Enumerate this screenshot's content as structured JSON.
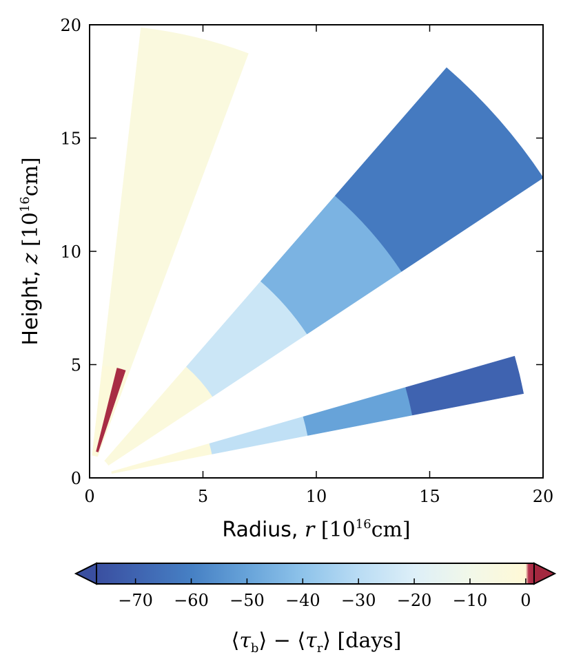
{
  "chart_data": {
    "type": "heatmap",
    "subtype": "polar-wedge map",
    "xlabel": {
      "prefix": "Radius, ",
      "var": "r",
      "unit_open": " [10",
      "unit_exp": "16",
      "unit_close": "cm]"
    },
    "ylabel": {
      "prefix": "Height, ",
      "var": "z",
      "unit_open": " [10",
      "unit_exp": "16",
      "unit_close": "cm]"
    },
    "xlim": [
      0,
      20
    ],
    "ylim": [
      0,
      20
    ],
    "xticks": [
      "0",
      "5",
      "10",
      "15",
      "20"
    ],
    "yticks": [
      "0",
      "5",
      "10",
      "15",
      "20"
    ],
    "grid": false,
    "colorbar": {
      "orientation": "horizontal",
      "position": "bottom",
      "range": [
        -77,
        1.5
      ],
      "extend": "both",
      "ticks": [
        "−70",
        "−60",
        "−50",
        "−40",
        "−30",
        "−20",
        "−10",
        "0"
      ],
      "tick_values": [
        -70,
        -60,
        -50,
        -40,
        -30,
        -20,
        -10,
        0
      ],
      "label": {
        "open": "⟨",
        "tau_b_sub": "b",
        "mid": "⟩ − ⟨",
        "tau_r_sub": "r",
        "close": "⟩",
        "unit": " [days]"
      },
      "colormap_stops": [
        [
          -77,
          "#3a4fa0"
        ],
        [
          -70,
          "#3f63b0"
        ],
        [
          -60,
          "#4680c4"
        ],
        [
          -50,
          "#67a3d9"
        ],
        [
          -40,
          "#8ec3ea"
        ],
        [
          -30,
          "#b9dcf4"
        ],
        [
          -20,
          "#ddeff8"
        ],
        [
          -10,
          "#f2f8e9"
        ],
        [
          0,
          "#fff9d6"
        ],
        [
          0.5,
          "#b5344f"
        ],
        [
          1.5,
          "#a3283f"
        ]
      ]
    },
    "wedges": [
      {
        "angle_deg": [
          11,
          16
        ],
        "radius": [
          1,
          19.5
        ],
        "cells": [
          {
            "r": [
              1,
              5.5
            ],
            "value": -2
          },
          {
            "r": [
              5.5,
              9.8
            ],
            "value": -28
          },
          {
            "r": [
              9.8,
              14.5
            ],
            "value": -50
          },
          {
            "r": [
              14.5,
              19.5
            ],
            "value": -70
          }
        ]
      },
      {
        "angle_deg": [
          33.5,
          49
        ],
        "radius": [
          1,
          24
        ],
        "cells": [
          {
            "r": [
              1,
              6.5
            ],
            "value": -3
          },
          {
            "r": [
              6.5,
              11.5
            ],
            "value": -25
          },
          {
            "r": [
              11.5,
              16.5
            ],
            "value": -45
          },
          {
            "r": [
              16.5,
              24
            ],
            "value": -62
          }
        ]
      },
      {
        "angle_deg": [
          69.5,
          83.5
        ],
        "radius": [
          1,
          20
        ],
        "cells": [
          {
            "r": [
              1,
              5
            ],
            "value": -2
          },
          {
            "r": [
              5,
              20
            ],
            "value": -4
          }
        ]
      },
      {
        "angle_deg": [
          71.5,
          76
        ],
        "radius": [
          1.2,
          5
        ],
        "cells": [
          {
            "r": [
              1.2,
              5
            ],
            "value": 1.2
          }
        ]
      }
    ]
  }
}
